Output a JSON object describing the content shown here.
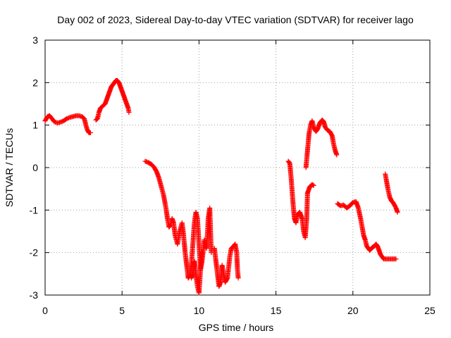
{
  "chart_data": {
    "type": "scatter",
    "title": "Day 002 of 2023, Sidereal Day-to-day VTEC variation (SDTVAR) for receiver lago",
    "xlabel": "GPS time / hours",
    "ylabel": "SDTVAR / TECUs",
    "xlim": [
      0,
      25
    ],
    "ylim": [
      -3,
      3
    ],
    "xticks": [
      "0",
      "5",
      "10",
      "15",
      "20",
      "25"
    ],
    "yticks": [
      "3",
      "2",
      "1",
      "0",
      "-1",
      "-2",
      "-3"
    ],
    "grid": true,
    "marker": "plus",
    "color": "#ff0000",
    "segments": [
      [
        [
          0.0,
          1.1
        ],
        [
          0.15,
          1.2
        ],
        [
          0.3,
          1.22
        ],
        [
          0.45,
          1.15
        ],
        [
          0.6,
          1.08
        ],
        [
          0.8,
          1.05
        ],
        [
          1.0,
          1.07
        ],
        [
          1.2,
          1.1
        ],
        [
          1.4,
          1.15
        ],
        [
          1.6,
          1.18
        ],
        [
          1.8,
          1.2
        ],
        [
          2.0,
          1.22
        ],
        [
          2.2,
          1.22
        ],
        [
          2.4,
          1.2
        ],
        [
          2.55,
          1.15
        ],
        [
          2.65,
          1.0
        ],
        [
          2.75,
          0.88
        ],
        [
          2.85,
          0.82
        ],
        [
          2.95,
          0.82
        ]
      ],
      [
        [
          3.3,
          1.12
        ],
        [
          3.4,
          1.15
        ],
        [
          3.5,
          1.3
        ],
        [
          3.6,
          1.4
        ],
        [
          3.75,
          1.45
        ],
        [
          3.9,
          1.5
        ],
        [
          4.0,
          1.6
        ],
        [
          4.1,
          1.7
        ],
        [
          4.2,
          1.8
        ],
        [
          4.3,
          1.9
        ],
        [
          4.4,
          1.95
        ],
        [
          4.5,
          2.0
        ],
        [
          4.6,
          2.05
        ],
        [
          4.7,
          2.05
        ],
        [
          4.8,
          2.0
        ],
        [
          4.9,
          1.9
        ],
        [
          5.0,
          1.8
        ],
        [
          5.1,
          1.7
        ],
        [
          5.2,
          1.6
        ],
        [
          5.3,
          1.5
        ],
        [
          5.4,
          1.4
        ],
        [
          5.45,
          1.3
        ]
      ],
      [
        [
          6.5,
          0.15
        ],
        [
          6.7,
          0.12
        ],
        [
          6.9,
          0.08
        ],
        [
          7.1,
          0.0
        ],
        [
          7.25,
          -0.1
        ],
        [
          7.4,
          -0.25
        ],
        [
          7.55,
          -0.45
        ],
        [
          7.7,
          -0.65
        ],
        [
          7.85,
          -0.95
        ],
        [
          7.95,
          -1.2
        ],
        [
          8.05,
          -1.4
        ],
        [
          8.15,
          -1.35
        ],
        [
          8.25,
          -1.2
        ],
        [
          8.35,
          -1.3
        ],
        [
          8.45,
          -1.6
        ],
        [
          8.6,
          -1.8
        ],
        [
          8.75,
          -1.5
        ],
        [
          8.9,
          -1.3
        ],
        [
          9.0,
          -1.6
        ],
        [
          9.1,
          -2.0
        ],
        [
          9.2,
          -2.3
        ],
        [
          9.3,
          -2.6
        ],
        [
          9.4,
          -2.55
        ],
        [
          9.5,
          -2.3
        ],
        [
          9.6,
          -1.8
        ],
        [
          9.7,
          -1.3
        ],
        [
          9.8,
          -1.05
        ],
        [
          9.9,
          -1.2
        ],
        [
          10.0,
          -1.8
        ],
        [
          10.1,
          -2.4
        ],
        [
          10.2,
          -2.2
        ],
        [
          10.35,
          -1.7
        ],
        [
          10.5,
          -1.9
        ],
        [
          10.6,
          -1.2
        ],
        [
          10.7,
          -0.95
        ],
        [
          10.75,
          -1.5
        ],
        [
          10.8,
          -2.0
        ]
      ],
      [
        [
          9.5,
          -2.6
        ],
        [
          9.6,
          -2.5
        ],
        [
          9.7,
          -2.2
        ],
        [
          9.8,
          -2.5
        ],
        [
          9.9,
          -2.8
        ],
        [
          10.0,
          -2.95
        ],
        [
          10.1,
          -2.4
        ],
        [
          10.2,
          -2.0
        ]
      ],
      [
        [
          11.0,
          -1.9
        ],
        [
          11.1,
          -2.2
        ],
        [
          11.2,
          -2.5
        ],
        [
          11.3,
          -2.8
        ],
        [
          11.4,
          -2.7
        ],
        [
          11.5,
          -2.3
        ],
        [
          11.6,
          -2.5
        ],
        [
          11.7,
          -2.7
        ],
        [
          11.85,
          -2.6
        ],
        [
          12.0,
          -2.1
        ],
        [
          12.1,
          -1.9
        ],
        [
          12.25,
          -1.85
        ],
        [
          12.35,
          -1.8
        ],
        [
          12.45,
          -2.0
        ],
        [
          12.5,
          -2.4
        ],
        [
          12.55,
          -2.6
        ]
      ],
      [
        [
          15.8,
          0.15
        ],
        [
          15.9,
          0.1
        ],
        [
          16.0,
          -0.3
        ],
        [
          16.1,
          -0.8
        ],
        [
          16.2,
          -1.2
        ],
        [
          16.3,
          -1.3
        ],
        [
          16.4,
          -1.1
        ],
        [
          16.55,
          -1.05
        ],
        [
          16.7,
          -1.2
        ],
        [
          16.8,
          -1.5
        ],
        [
          16.9,
          -1.65
        ],
        [
          17.0,
          -1.2
        ],
        [
          17.05,
          -0.6
        ]
      ],
      [
        [
          16.95,
          0.0
        ],
        [
          17.05,
          0.4
        ],
        [
          17.15,
          0.8
        ],
        [
          17.25,
          1.0
        ],
        [
          17.35,
          1.1
        ],
        [
          17.45,
          0.95
        ],
        [
          17.6,
          0.85
        ],
        [
          17.7,
          0.9
        ],
        [
          17.85,
          1.05
        ],
        [
          18.0,
          1.12
        ],
        [
          18.1,
          1.08
        ],
        [
          18.2,
          0.95
        ],
        [
          18.35,
          0.88
        ],
        [
          18.5,
          0.85
        ],
        [
          18.65,
          0.75
        ],
        [
          18.75,
          0.55
        ],
        [
          18.85,
          0.4
        ],
        [
          18.95,
          0.3
        ]
      ],
      [
        [
          17.05,
          -0.6
        ],
        [
          17.2,
          -0.45
        ],
        [
          17.35,
          -0.4
        ],
        [
          17.45,
          -0.42
        ]
      ],
      [
        [
          19.0,
          -0.85
        ],
        [
          19.2,
          -0.9
        ],
        [
          19.4,
          -0.88
        ],
        [
          19.6,
          -0.95
        ],
        [
          19.8,
          -0.9
        ],
        [
          20.0,
          -0.82
        ],
        [
          20.2,
          -0.8
        ],
        [
          20.35,
          -0.95
        ],
        [
          20.5,
          -1.2
        ],
        [
          20.6,
          -1.4
        ],
        [
          20.7,
          -1.6
        ],
        [
          20.8,
          -1.7
        ],
        [
          20.9,
          -1.85
        ],
        [
          21.0,
          -1.9
        ],
        [
          21.1,
          -1.95
        ],
        [
          21.25,
          -1.88
        ],
        [
          21.4,
          -1.85
        ],
        [
          21.5,
          -1.8
        ],
        [
          21.6,
          -1.85
        ],
        [
          21.7,
          -1.95
        ],
        [
          21.8,
          -2.05
        ],
        [
          21.9,
          -2.1
        ],
        [
          22.0,
          -2.15
        ],
        [
          22.2,
          -2.15
        ],
        [
          22.4,
          -2.15
        ],
        [
          22.6,
          -2.15
        ],
        [
          22.8,
          -2.15
        ]
      ],
      [
        [
          22.1,
          -0.15
        ],
        [
          22.2,
          -0.35
        ],
        [
          22.3,
          -0.55
        ],
        [
          22.4,
          -0.7
        ],
        [
          22.5,
          -0.78
        ],
        [
          22.6,
          -0.82
        ],
        [
          22.7,
          -0.88
        ],
        [
          22.8,
          -0.95
        ],
        [
          22.9,
          -1.05
        ]
      ]
    ]
  }
}
